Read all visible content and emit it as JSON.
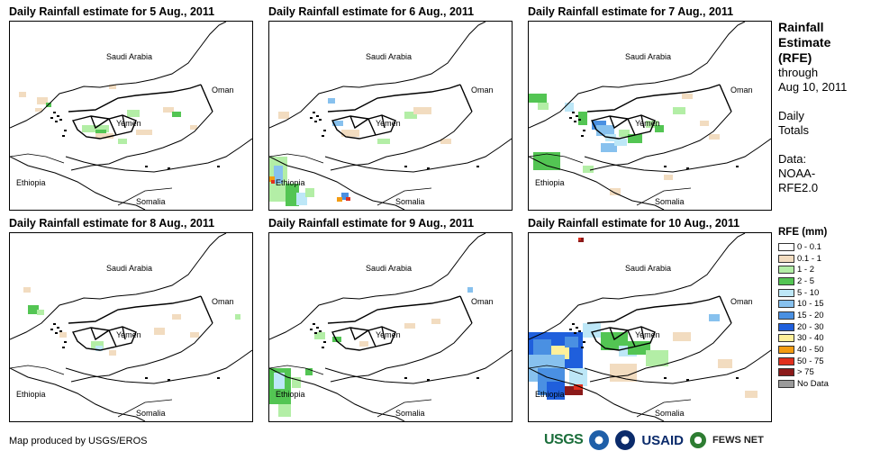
{
  "panels": [
    {
      "title": "Daily Rainfall estimate for 5 Aug., 2011",
      "scenario": "light"
    },
    {
      "title": "Daily Rainfall estimate for 6 Aug., 2011",
      "scenario": "sw"
    },
    {
      "title": "Daily Rainfall estimate for 7 Aug., 2011",
      "scenario": "heavy"
    },
    {
      "title": "Daily Rainfall estimate for 8 Aug., 2011",
      "scenario": "sparse"
    },
    {
      "title": "Daily Rainfall estimate for 9 Aug., 2011",
      "scenario": "sparse2"
    },
    {
      "title": "Daily Rainfall estimate for 10 Aug., 2011",
      "scenario": "storm"
    }
  ],
  "map_labels": {
    "saudi": "Saudi Arabia",
    "oman": "Oman",
    "yemen": "Yemen",
    "ethiopia": "Ethiopia",
    "somalia": "Somalia"
  },
  "sidebar": {
    "title_lines": [
      "Rainfall",
      "Estimate",
      "(RFE)"
    ],
    "through": "through",
    "date": "Aug 10, 2011",
    "totals_lines": [
      "Daily",
      "Totals"
    ],
    "data_lines": [
      "Data:",
      "NOAA-",
      "RFE2.0"
    ]
  },
  "legend": {
    "title": "RFE (mm)",
    "items": [
      {
        "label": "0 - 0.1",
        "color": "#ffffff"
      },
      {
        "label": "0.1 - 1",
        "color": "#f2dcc0"
      },
      {
        "label": "1 - 2",
        "color": "#b3eea6"
      },
      {
        "label": "2 - 5",
        "color": "#53c553"
      },
      {
        "label": "5 - 10",
        "color": "#bde7f7"
      },
      {
        "label": "10 - 15",
        "color": "#87c1ee"
      },
      {
        "label": "15 - 20",
        "color": "#4a90e2"
      },
      {
        "label": "20 - 30",
        "color": "#1f5fdc"
      },
      {
        "label": "30 - 40",
        "color": "#fff09a"
      },
      {
        "label": "40 - 50",
        "color": "#f39c12"
      },
      {
        "label": "50 - 75",
        "color": "#e0301e"
      },
      {
        "label": "> 75",
        "color": "#8b1a1a"
      },
      {
        "label": "No Data",
        "color": "#9a9a9a"
      }
    ]
  },
  "footer": {
    "credit": "Map produced by USGS/EROS",
    "logos": {
      "usgs": "USGS",
      "usaid": "USAID",
      "fews": "FEWS NET"
    }
  }
}
